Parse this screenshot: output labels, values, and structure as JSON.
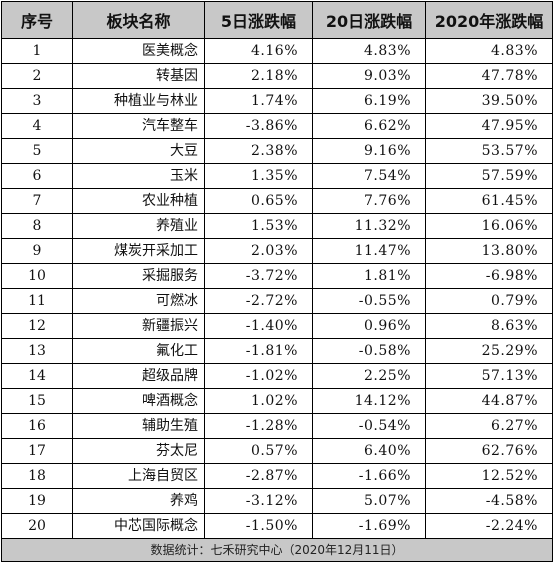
{
  "table": {
    "headers": [
      "序号",
      "板块名称",
      "5日涨跌幅",
      "20日涨跌幅",
      "2020年涨跌幅"
    ],
    "rows": [
      [
        "1",
        "医美概念",
        "4.16%",
        "4.83%",
        "4.83%"
      ],
      [
        "2",
        "转基因",
        "2.18%",
        "9.03%",
        "47.78%"
      ],
      [
        "3",
        "种植业与林业",
        "1.74%",
        "6.19%",
        "39.50%"
      ],
      [
        "4",
        "汽车整车",
        "-3.86%",
        "6.62%",
        "47.95%"
      ],
      [
        "5",
        "大豆",
        "2.38%",
        "9.16%",
        "53.57%"
      ],
      [
        "6",
        "玉米",
        "1.35%",
        "7.54%",
        "57.59%"
      ],
      [
        "7",
        "农业种植",
        "0.65%",
        "7.76%",
        "61.45%"
      ],
      [
        "8",
        "养殖业",
        "1.53%",
        "11.32%",
        "16.06%"
      ],
      [
        "9",
        "煤炭开采加工",
        "2.03%",
        "11.47%",
        "13.80%"
      ],
      [
        "10",
        "采掘服务",
        "-3.72%",
        "1.81%",
        "-6.98%"
      ],
      [
        "11",
        "可燃冰",
        "-2.72%",
        "-0.55%",
        "0.79%"
      ],
      [
        "12",
        "新疆振兴",
        "-1.40%",
        "0.96%",
        "8.63%"
      ],
      [
        "13",
        "氟化工",
        "-1.81%",
        "-0.58%",
        "25.29%"
      ],
      [
        "14",
        "超级品牌",
        "-1.02%",
        "2.25%",
        "57.13%"
      ],
      [
        "15",
        "啤酒概念",
        "1.02%",
        "14.12%",
        "44.87%"
      ],
      [
        "16",
        "辅助生殖",
        "-1.28%",
        "-0.54%",
        "6.27%"
      ],
      [
        "17",
        "芬太尼",
        "0.57%",
        "6.40%",
        "62.76%"
      ],
      [
        "18",
        "上海自贸区",
        "-2.87%",
        "-1.66%",
        "12.52%"
      ],
      [
        "19",
        "养鸡",
        "-3.12%",
        "5.07%",
        "-4.58%"
      ],
      [
        "20",
        "中芯国际概念",
        "-1.50%",
        "-1.69%",
        "-2.24%"
      ]
    ],
    "footer": "数据统计：七禾研究中心（2020年12月11日）"
  },
  "colors": {
    "header_bg": "#c8c8c8",
    "border": "#000000",
    "text": "#111111"
  }
}
